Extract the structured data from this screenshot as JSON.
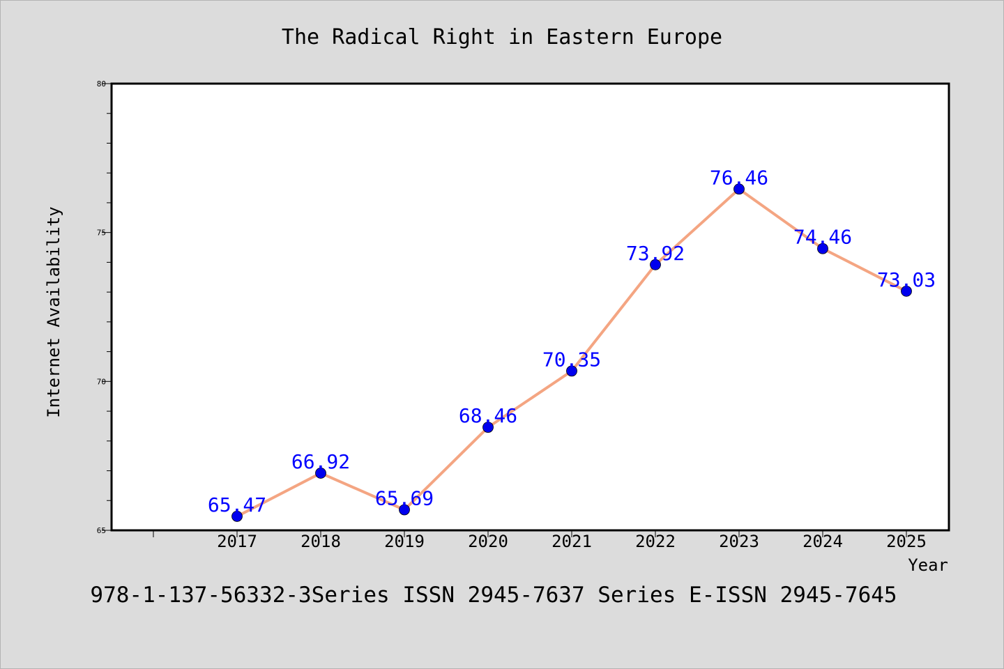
{
  "page": {
    "background": "#dcdcdc",
    "footer": "978-1-137-56332-3Series ISSN 2945-7637 Series E-ISSN 2945-7645"
  },
  "chart_data": {
    "type": "line",
    "title": "The Radical Right in Eastern Europe",
    "xlabel": "Year",
    "ylabel": "Internet Availability",
    "categories": [
      "2017",
      "2018",
      "2019",
      "2020",
      "2021",
      "2022",
      "2023",
      "2024",
      "2025"
    ],
    "series": [
      {
        "values": [
          65.47,
          66.92,
          65.69,
          68.46,
          70.35,
          73.92,
          76.46,
          74.46,
          73.03
        ],
        "labels": [
          "65.47",
          "66.92",
          "65.69",
          "68.46",
          "70.35",
          "73.92",
          "76.46",
          "74.46",
          "73.03"
        ],
        "line_color": "#f4a582",
        "marker_color": "#0000ee",
        "label_color": "#0000ff"
      }
    ],
    "ylim": [
      65,
      80
    ],
    "yticks": [
      65,
      70,
      75,
      80
    ],
    "y_minor_step": 1,
    "grid": false,
    "legend": "none",
    "plot_background": "#ffffff"
  }
}
